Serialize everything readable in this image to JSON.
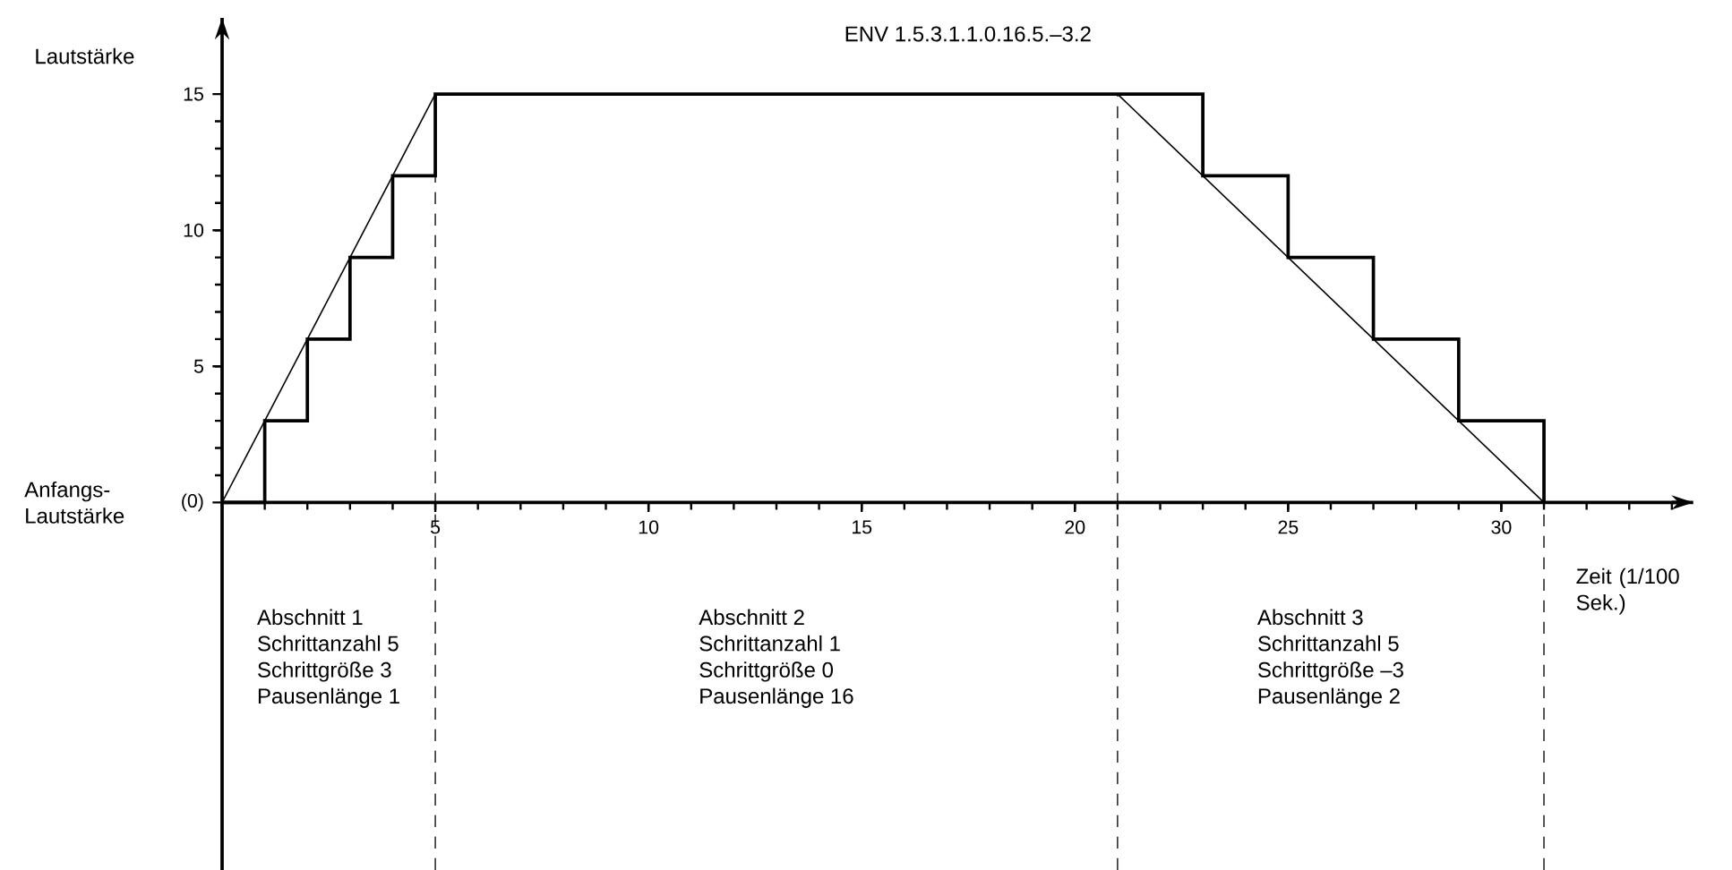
{
  "chart_data": {
    "type": "step",
    "title": "ENV 1.5.3.1.1.0.16.5.–3.2",
    "xlabel": "Zeit (1/100 Sek.)",
    "ylabel": "Lautstärke",
    "series": [
      {
        "color": "#000000",
        "x": [
          0,
          1,
          2,
          3,
          4,
          5,
          21,
          23,
          25,
          27,
          29,
          31
        ],
        "values": [
          0,
          3,
          6,
          9,
          12,
          15,
          15,
          12,
          9,
          6,
          3,
          0
        ]
      },
      {
        "type": "line",
        "color": "#000000",
        "x": [
          0,
          5,
          21,
          31
        ],
        "values": [
          0,
          15,
          15,
          0
        ]
      }
    ],
    "xlim": [
      0,
      34.5
    ],
    "ylim": [
      -13.5,
      17.8
    ],
    "xticks": [
      5,
      10,
      15,
      20,
      25,
      30
    ],
    "yticks": [
      {
        "value": 0,
        "label": "(0)"
      },
      5,
      10,
      15
    ],
    "ref_lines": [
      {
        "axis": "x",
        "value": 5,
        "line_style": "dashed"
      },
      {
        "axis": "x",
        "value": 21,
        "line_style": "dashed"
      },
      {
        "axis": "x",
        "value": 31,
        "line_style": "dashed"
      }
    ],
    "annotations": [
      "Anfangs- Lautstärke",
      "Abschnitt 1",
      "Schrittanzahl 5",
      "Schrittgröße 3",
      "Pausenlänge 1",
      "Abschnitt 2",
      "Schrittanzahl 1",
      "Schrittgröße 0",
      "Pausenlänge 16",
      "Abschnitt 3",
      "Schrittanzahl 5",
      "Schrittgröße –3",
      "Pausenlänge 2"
    ],
    "grid": false,
    "marker": "none"
  }
}
